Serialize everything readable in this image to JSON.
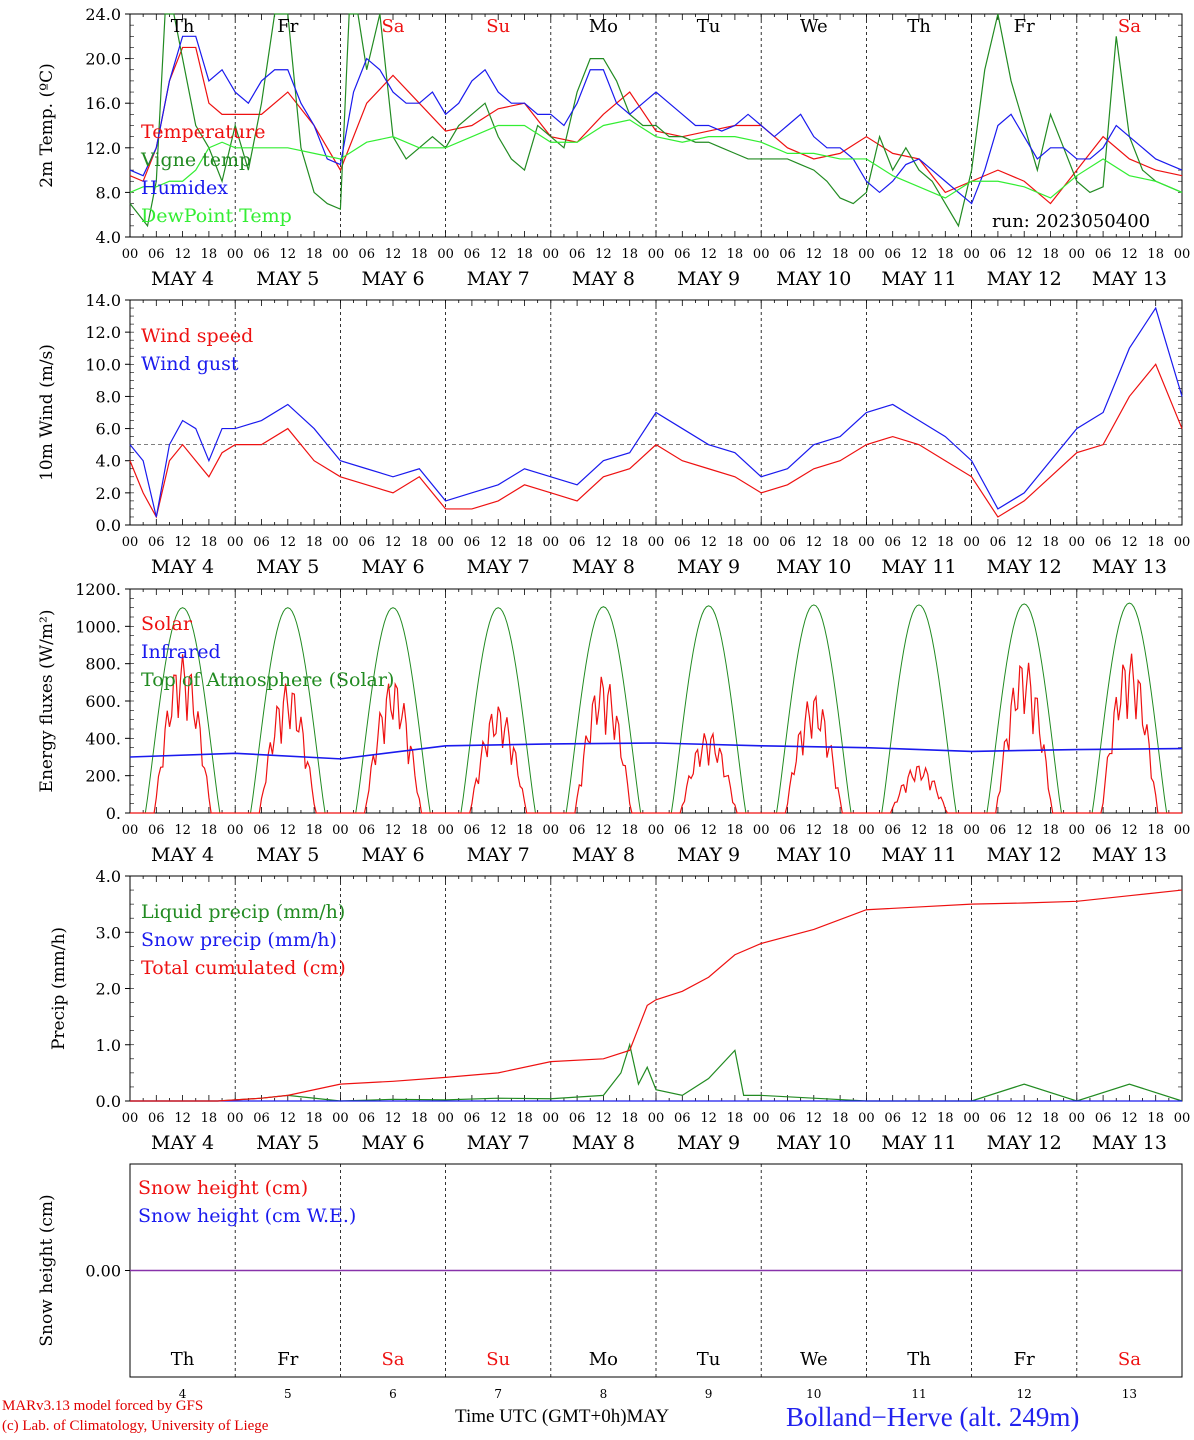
{
  "days": {
    "names": [
      "Th",
      "Fr",
      "Sa",
      "Su",
      "Mo",
      "Tu",
      "We",
      "Th",
      "Fr",
      "Sa"
    ],
    "weekend": [
      false,
      false,
      true,
      true,
      false,
      false,
      false,
      false,
      false,
      true
    ],
    "date_labels": [
      "MAY  4",
      "MAY  5",
      "MAY  6",
      "MAY  7",
      "MAY  8",
      "MAY  9",
      "MAY 10",
      "MAY 11",
      "MAY 12",
      "MAY 13"
    ],
    "bottom_numbers": [
      "4",
      "5",
      "6",
      "7",
      "8",
      "9",
      "10",
      "11",
      "12",
      "13"
    ],
    "hour_ticks": [
      "00",
      "06",
      "12",
      "18"
    ],
    "last_tick": "00"
  },
  "colors": {
    "weekend_text": "#ee1111",
    "weekday_text": "#000000"
  },
  "footer": {
    "credit_line1": "MARv3.13 model forced by GFS",
    "credit_line2": "(c) Lab. of Climatology, University of Liege",
    "x_title": "Time UTC (GMT+0h)",
    "month": "MAY",
    "station": "Bolland−Herve (alt. 249m)"
  },
  "chart_data": [
    {
      "id": "temperature",
      "type": "line",
      "ylabel": "2m Temp. (ºC)",
      "ylim": [
        4,
        24
      ],
      "ytick_labels": [
        "4.0",
        "8.0",
        "12.0",
        "16.0",
        "20.0",
        "24.0"
      ],
      "annotation": "run: 2023050400",
      "x_unit": "hours since 2023-05-04 00 UTC",
      "series": [
        {
          "name": "Temperature",
          "color": "#ee1111",
          "x": [
            0,
            3,
            6,
            9,
            12,
            15,
            18,
            21,
            24,
            30,
            36,
            42,
            48,
            54,
            60,
            66,
            72,
            78,
            84,
            90,
            96,
            102,
            108,
            114,
            120,
            126,
            132,
            138,
            144,
            150,
            156,
            162,
            168,
            174,
            180,
            186,
            192,
            198,
            204,
            210,
            216,
            222,
            228,
            234,
            240
          ],
          "y": [
            9.5,
            9,
            12,
            18,
            21,
            21,
            16,
            15,
            15,
            15,
            17,
            14,
            10,
            16,
            18.5,
            16,
            13.5,
            14,
            15.5,
            16,
            13,
            12.5,
            15,
            17,
            13.5,
            13,
            13.5,
            14,
            14,
            12,
            11,
            11.5,
            13,
            11.5,
            11,
            8,
            9,
            10,
            9,
            7,
            10,
            13,
            11,
            10,
            9.5
          ]
        },
        {
          "name": "Vigne temp",
          "color": "#228b22",
          "x": [
            0,
            4,
            6,
            8,
            10,
            12,
            15,
            18,
            21,
            24,
            27,
            30,
            33,
            36,
            39,
            42,
            45,
            48,
            50,
            52,
            54,
            57,
            60,
            63,
            66,
            69,
            72,
            75,
            78,
            81,
            84,
            87,
            90,
            93,
            96,
            99,
            102,
            105,
            108,
            111,
            114,
            117,
            120,
            123,
            126,
            129,
            132,
            135,
            138,
            141,
            144,
            147,
            150,
            153,
            156,
            159,
            162,
            165,
            168,
            171,
            174,
            177,
            180,
            183,
            186,
            189,
            192,
            195,
            198,
            201,
            204,
            207,
            210,
            213,
            216,
            219,
            222,
            225,
            228,
            231,
            234,
            237,
            240
          ],
          "y": [
            7,
            5,
            9,
            24,
            24,
            20,
            14,
            12,
            9,
            14,
            10,
            16,
            24,
            24,
            12,
            8,
            7,
            6.5,
            24,
            24,
            19,
            24,
            13,
            11,
            12,
            13,
            12,
            14,
            15,
            16,
            13,
            11,
            10,
            14,
            13,
            12,
            17,
            20,
            20,
            18,
            15,
            14,
            14,
            13,
            13,
            12.5,
            12.5,
            12,
            11.5,
            11,
            11,
            11,
            11,
            10.5,
            10,
            9,
            7.5,
            7,
            8,
            13,
            10,
            12,
            10,
            9,
            7,
            5,
            10,
            19,
            24,
            18,
            14,
            10,
            15,
            12,
            9,
            8,
            8.5,
            22,
            13,
            10,
            9,
            8.5,
            8
          ]
        },
        {
          "name": "Humidex",
          "color": "#1a1aee",
          "x": [
            0,
            3,
            6,
            9,
            12,
            15,
            18,
            21,
            24,
            27,
            30,
            33,
            36,
            39,
            42,
            45,
            48,
            51,
            54,
            57,
            60,
            63,
            66,
            69,
            72,
            75,
            78,
            81,
            84,
            87,
            90,
            93,
            96,
            99,
            102,
            105,
            108,
            111,
            114,
            117,
            120,
            123,
            126,
            129,
            132,
            135,
            138,
            141,
            144,
            147,
            150,
            153,
            156,
            159,
            162,
            165,
            168,
            171,
            174,
            177,
            180,
            183,
            186,
            189,
            192,
            195,
            198,
            201,
            204,
            207,
            210,
            213,
            216,
            219,
            222,
            225,
            228,
            231,
            234,
            237,
            240
          ],
          "y": [
            10,
            9.5,
            12,
            18,
            22,
            22,
            18,
            19,
            17,
            16,
            18,
            19,
            19,
            16,
            14,
            11,
            10.5,
            17,
            20,
            19,
            17,
            16,
            16,
            17,
            15,
            16,
            18,
            19,
            17,
            16,
            16,
            15,
            15,
            14,
            16,
            19,
            19,
            16,
            15,
            16,
            17,
            16,
            15,
            14,
            14,
            13.5,
            14,
            15,
            14,
            13,
            14,
            15,
            13,
            12,
            12,
            11,
            9,
            8,
            9,
            10.5,
            11,
            10,
            9,
            8,
            7,
            10,
            14,
            15,
            13,
            11,
            12,
            12,
            11,
            11,
            12,
            14,
            13,
            12,
            11,
            10.5,
            10
          ]
        },
        {
          "name": "DewPoint Temp",
          "color": "#33ee33",
          "x": [
            0,
            3,
            6,
            9,
            12,
            15,
            18,
            21,
            24,
            30,
            36,
            42,
            48,
            54,
            60,
            66,
            72,
            78,
            84,
            90,
            96,
            102,
            108,
            114,
            120,
            126,
            132,
            138,
            144,
            150,
            156,
            162,
            168,
            174,
            180,
            186,
            192,
            198,
            204,
            210,
            216,
            222,
            228,
            234,
            240
          ],
          "y": [
            8,
            8.5,
            8.5,
            9,
            9,
            10,
            12,
            12.5,
            12,
            12,
            12,
            11.5,
            11,
            12.5,
            13,
            12,
            12,
            13,
            14,
            14,
            12.5,
            12.5,
            14,
            14.5,
            13,
            12.5,
            13,
            13,
            12.5,
            11.5,
            11.5,
            11,
            11,
            9.5,
            8.5,
            7.5,
            9,
            9,
            8.5,
            7.5,
            9.5,
            11,
            9.5,
            9,
            8
          ]
        }
      ]
    },
    {
      "id": "wind",
      "type": "line",
      "ylabel": "10m Wind (m/s)",
      "ylim": [
        0,
        14
      ],
      "ytick_labels": [
        "0.0",
        "2.0",
        "4.0",
        "6.0",
        "8.0",
        "10.0",
        "12.0",
        "14.0"
      ],
      "reference_line": 5,
      "x_unit": "hours since 2023-05-04 00 UTC",
      "series": [
        {
          "name": "Wind speed",
          "color": "#ee1111",
          "x": [
            0,
            3,
            6,
            9,
            12,
            15,
            18,
            21,
            24,
            30,
            36,
            42,
            48,
            54,
            60,
            66,
            72,
            78,
            84,
            90,
            96,
            102,
            108,
            114,
            120,
            126,
            132,
            138,
            144,
            150,
            156,
            162,
            168,
            174,
            180,
            186,
            192,
            198,
            204,
            210,
            216,
            222,
            228,
            234,
            240
          ],
          "y": [
            4,
            2,
            0.5,
            4,
            5,
            4,
            3,
            4.5,
            5,
            5,
            6,
            4,
            3,
            2.5,
            2,
            3,
            1,
            1,
            1.5,
            2.5,
            2,
            1.5,
            3,
            3.5,
            5,
            4,
            3.5,
            3,
            2,
            2.5,
            3.5,
            4,
            5,
            5.5,
            5,
            4,
            3,
            0.5,
            1.5,
            3,
            4.5,
            5,
            8,
            10,
            6
          ]
        },
        {
          "name": "Wind gust",
          "color": "#1a1aee",
          "x": [
            0,
            3,
            6,
            9,
            12,
            15,
            18,
            21,
            24,
            30,
            36,
            42,
            48,
            54,
            60,
            66,
            72,
            78,
            84,
            90,
            96,
            102,
            108,
            114,
            120,
            126,
            132,
            138,
            144,
            150,
            156,
            162,
            168,
            174,
            180,
            186,
            192,
            198,
            204,
            210,
            216,
            222,
            228,
            234,
            240
          ],
          "y": [
            5,
            4,
            0.5,
            5,
            6.5,
            6,
            4,
            6,
            6,
            6.5,
            7.5,
            6,
            4,
            3.5,
            3,
            3.5,
            1.5,
            2,
            2.5,
            3.5,
            3,
            2.5,
            4,
            4.5,
            7,
            6,
            5,
            4.5,
            3,
            3.5,
            5,
            5.5,
            7,
            7.5,
            6.5,
            5.5,
            4,
            1,
            2,
            4,
            6,
            7,
            11,
            13.5,
            8
          ]
        }
      ]
    },
    {
      "id": "energy",
      "type": "line",
      "ylabel": "Energy fluxes (W/m²)",
      "ylim": [
        0,
        1200
      ],
      "ytick_labels": [
        "0.",
        "200.",
        "400.",
        "600.",
        "800.",
        "1000.",
        "1200."
      ],
      "x_unit": "hours since 2023-05-04 00 UTC",
      "series": [
        {
          "name": "Solar",
          "color": "#ee1111",
          "daily_peaks": [
            850,
            700,
            720,
            580,
            740,
            440,
            640,
            260,
            830,
            860
          ]
        },
        {
          "name": "Infrared",
          "color": "#1a1aee",
          "x": [
            0,
            24,
            48,
            72,
            96,
            120,
            144,
            168,
            192,
            216,
            240
          ],
          "y": [
            300,
            320,
            290,
            360,
            370,
            375,
            360,
            350,
            330,
            340,
            345
          ]
        },
        {
          "name": "Top of Atmosphere (Solar)",
          "color": "#228b22",
          "daily_peaks": [
            1100,
            1100,
            1100,
            1100,
            1105,
            1110,
            1115,
            1115,
            1120,
            1125
          ]
        }
      ]
    },
    {
      "id": "precip",
      "type": "line",
      "ylabel": "Precip (mm/h)",
      "ylim": [
        0,
        4
      ],
      "ytick_labels": [
        "0.0",
        "1.0",
        "2.0",
        "3.0",
        "4.0"
      ],
      "x_unit": "hours since 2023-05-04 00 UTC",
      "series": [
        {
          "name": "Liquid precip (mm/h)",
          "color": "#228b22",
          "x": [
            0,
            20,
            30,
            36,
            48,
            60,
            72,
            84,
            96,
            108,
            112,
            114,
            116,
            118,
            120,
            126,
            132,
            138,
            140,
            144,
            156,
            168,
            192,
            204,
            216,
            228,
            240
          ],
          "y": [
            0,
            0,
            0.05,
            0.1,
            0,
            0.03,
            0.02,
            0.05,
            0.04,
            0.1,
            0.5,
            1.0,
            0.3,
            0.6,
            0.2,
            0.1,
            0.4,
            0.9,
            0.1,
            0.1,
            0.05,
            0,
            0,
            0.3,
            0,
            0.3,
            0
          ]
        },
        {
          "name": "Snow precip (mm/h)",
          "color": "#1a1aee",
          "x": [
            0,
            240
          ],
          "y": [
            0,
            0
          ]
        },
        {
          "name": "Total cumulated (cm)",
          "color": "#ee1111",
          "x": [
            0,
            20,
            30,
            36,
            48,
            60,
            72,
            84,
            96,
            108,
            114,
            118,
            120,
            126,
            132,
            138,
            144,
            156,
            168,
            180,
            192,
            204,
            216,
            228,
            240
          ],
          "y": [
            0,
            0,
            0.05,
            0.1,
            0.3,
            0.35,
            0.42,
            0.5,
            0.7,
            0.75,
            0.9,
            1.7,
            1.8,
            1.95,
            2.2,
            2.6,
            2.8,
            3.05,
            3.4,
            3.45,
            3.5,
            3.52,
            3.55,
            3.65,
            3.75
          ]
        }
      ]
    },
    {
      "id": "snow",
      "type": "line",
      "ylabel": "Snow height (cm)",
      "ytick_labels": [
        "0.00"
      ],
      "x_unit": "hours since 2023-05-04 00 UTC",
      "series": [
        {
          "name": "Snow height (cm)",
          "color": "#ee1111",
          "x": [
            0,
            240
          ],
          "y": [
            0,
            0
          ]
        },
        {
          "name": "Snow height (cm W.E.)",
          "color": "#1a1aee",
          "x": [
            0,
            240
          ],
          "y": [
            0,
            0
          ]
        }
      ]
    }
  ]
}
